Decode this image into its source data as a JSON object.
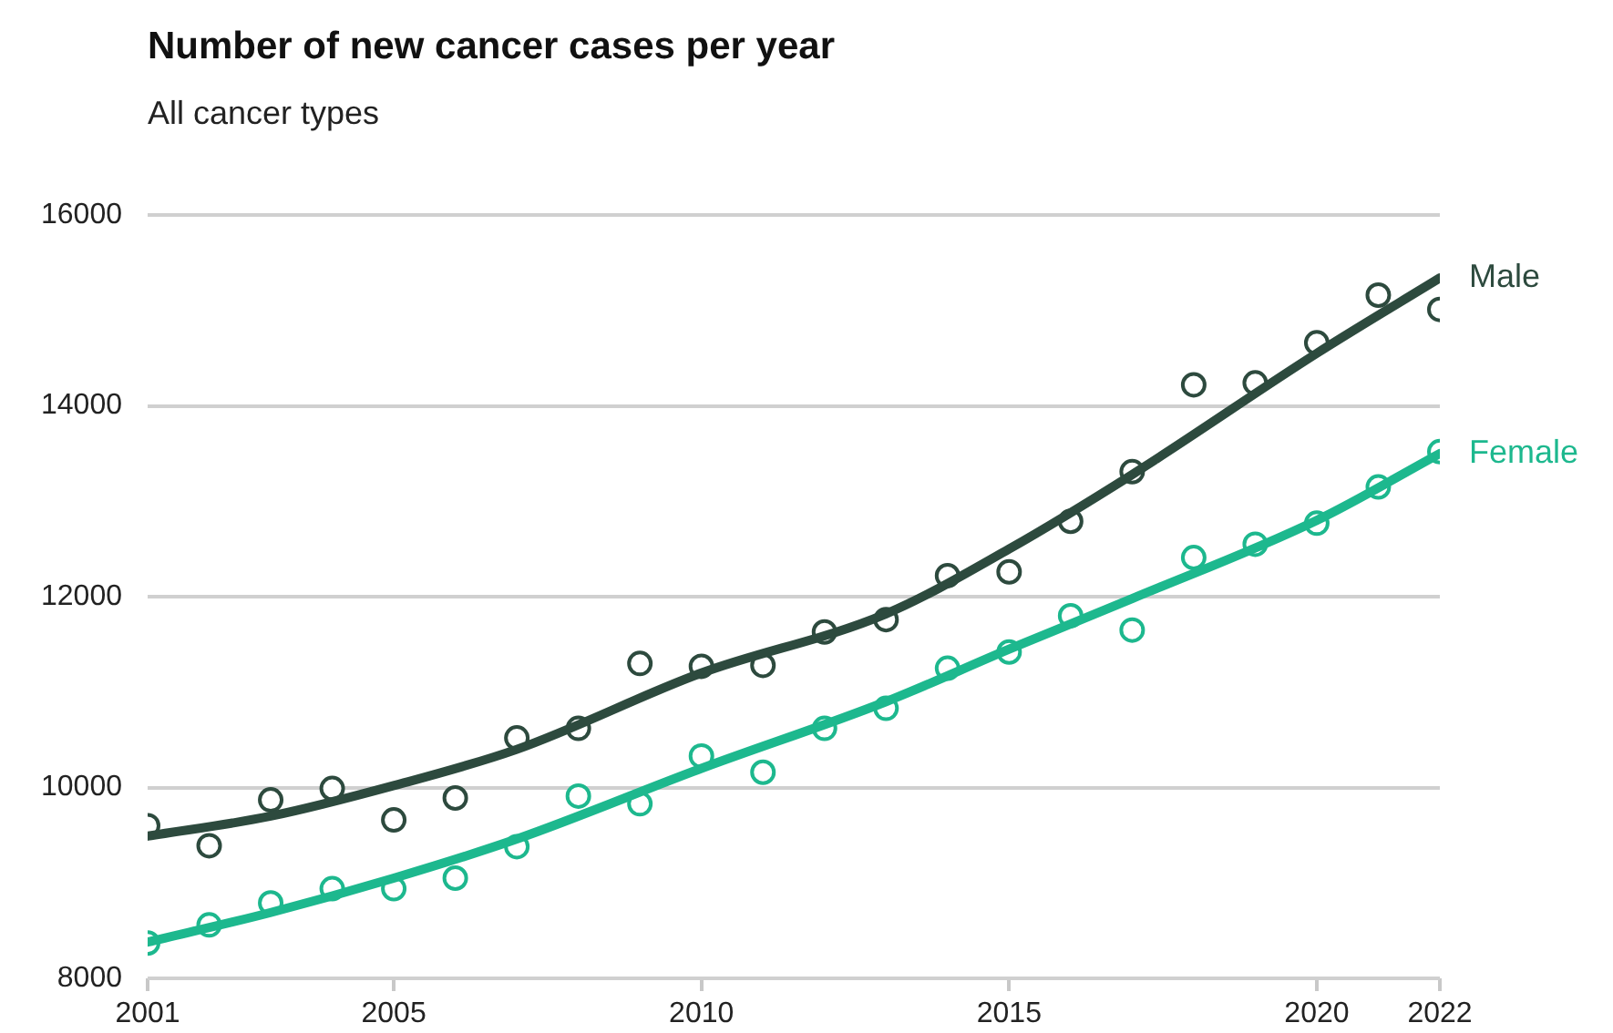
{
  "chart_data": {
    "type": "line",
    "title": "Number of new cancer cases per year",
    "subtitle": "All cancer types",
    "x": [
      2001,
      2002,
      2003,
      2004,
      2005,
      2006,
      2007,
      2008,
      2009,
      2010,
      2011,
      2012,
      2013,
      2014,
      2015,
      2016,
      2017,
      2018,
      2019,
      2020,
      2021,
      2022
    ],
    "series": [
      {
        "type": "scatter",
        "color": "#2d4a3e",
        "marker": "circle",
        "values": [
          9600,
          9390,
          9870,
          9990,
          9660,
          9890,
          10520,
          10620,
          11300,
          11270,
          11280,
          11630,
          11760,
          12220,
          12260,
          12790,
          13310,
          14220,
          14240,
          14660,
          15160,
          15010
        ]
      },
      {
        "type": "scatter",
        "color": "#1db88e",
        "marker": "circle",
        "values": [
          8370,
          8560,
          8790,
          8940,
          8940,
          9050,
          9380,
          9910,
          9830,
          10330,
          10160,
          10620,
          10830,
          11250,
          11420,
          11800,
          11650,
          12410,
          12550,
          12770,
          13150,
          13520
        ]
      },
      {
        "name": "Male",
        "color": "#2d4a3e",
        "x": [
          2001,
          2003,
          2005,
          2007,
          2010,
          2013,
          2015,
          2017,
          2020,
          2022
        ],
        "values": [
          9490,
          9700,
          10020,
          10400,
          11200,
          11820,
          12500,
          13280,
          14550,
          15340
        ]
      },
      {
        "name": "Female",
        "color": "#1db88e",
        "x": [
          2001,
          2003,
          2005,
          2007,
          2010,
          2013,
          2015,
          2017,
          2020,
          2022
        ],
        "values": [
          8380,
          8690,
          9050,
          9460,
          10200,
          10900,
          11450,
          11980,
          12800,
          13500
        ]
      }
    ],
    "xlim": [
      2001,
      2022
    ],
    "xticks": [
      2001,
      2005,
      2010,
      2015,
      2020,
      2022
    ],
    "ylim": [
      8000,
      16000
    ],
    "yticks": [
      8000,
      10000,
      12000,
      14000,
      16000
    ],
    "grid": "y",
    "legend": false,
    "line_style": "solid"
  }
}
